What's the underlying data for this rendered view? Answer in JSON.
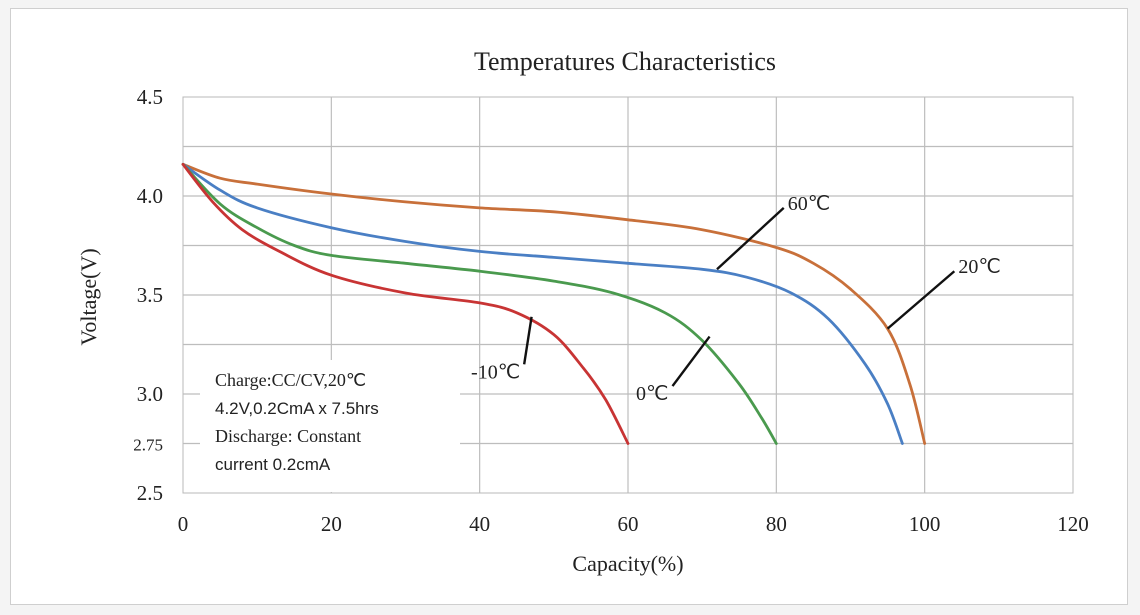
{
  "chart_data": {
    "type": "line",
    "title": "Temperatures Characteristics",
    "xlabel": "Capacity(%)",
    "ylabel": "Voltage(V)",
    "xlim": [
      0,
      120
    ],
    "ylim": [
      2.5,
      4.5
    ],
    "x_ticks": [
      0,
      20,
      40,
      60,
      80,
      100,
      120
    ],
    "x_tick_labels": [
      "0",
      "20",
      "40",
      "60",
      "80",
      "100",
      "120"
    ],
    "y_ticks": [
      2.5,
      2.75,
      3.0,
      3.5,
      4.0,
      4.5
    ],
    "y_tick_labels": [
      "2.5",
      "2.75",
      "3.0",
      "3.5",
      "4.0",
      "4.5"
    ],
    "grid": true,
    "series": [
      {
        "name": "60℃",
        "color": "#c8703a",
        "points": [
          [
            0,
            4.16
          ],
          [
            5,
            4.09
          ],
          [
            10,
            4.06
          ],
          [
            20,
            4.01
          ],
          [
            30,
            3.97
          ],
          [
            40,
            3.94
          ],
          [
            50,
            3.92
          ],
          [
            60,
            3.88
          ],
          [
            70,
            3.83
          ],
          [
            80,
            3.74
          ],
          [
            85,
            3.66
          ],
          [
            90,
            3.53
          ],
          [
            95,
            3.33
          ],
          [
            98,
            3.05
          ],
          [
            100,
            2.75
          ]
        ]
      },
      {
        "name": "20℃",
        "color": "#4a7fc4",
        "points": [
          [
            0,
            4.16
          ],
          [
            5,
            4.03
          ],
          [
            10,
            3.94
          ],
          [
            20,
            3.84
          ],
          [
            30,
            3.77
          ],
          [
            40,
            3.72
          ],
          [
            50,
            3.69
          ],
          [
            60,
            3.66
          ],
          [
            70,
            3.63
          ],
          [
            76,
            3.59
          ],
          [
            82,
            3.51
          ],
          [
            87,
            3.38
          ],
          [
            92,
            3.15
          ],
          [
            95,
            2.95
          ],
          [
            97,
            2.75
          ]
        ]
      },
      {
        "name": "0℃",
        "color": "#4a9a4e",
        "points": [
          [
            0,
            4.16
          ],
          [
            5,
            3.96
          ],
          [
            10,
            3.84
          ],
          [
            15,
            3.75
          ],
          [
            20,
            3.7
          ],
          [
            30,
            3.66
          ],
          [
            40,
            3.62
          ],
          [
            50,
            3.57
          ],
          [
            58,
            3.51
          ],
          [
            65,
            3.41
          ],
          [
            70,
            3.27
          ],
          [
            75,
            3.05
          ],
          [
            78,
            2.88
          ],
          [
            80,
            2.75
          ]
        ]
      },
      {
        "name": "-10℃",
        "color": "#c83434",
        "points": [
          [
            0,
            4.16
          ],
          [
            4,
            3.97
          ],
          [
            8,
            3.83
          ],
          [
            13,
            3.72
          ],
          [
            20,
            3.6
          ],
          [
            30,
            3.51
          ],
          [
            40,
            3.46
          ],
          [
            45,
            3.41
          ],
          [
            50,
            3.3
          ],
          [
            54,
            3.13
          ],
          [
            57,
            2.97
          ],
          [
            60,
            2.75
          ]
        ]
      }
    ],
    "annotations": [
      {
        "text": "60℃",
        "series": "60℃",
        "at": [
          72,
          3.63
        ],
        "label_at": [
          81,
          3.94
        ]
      },
      {
        "text": "20℃",
        "series": "20℃",
        "at": [
          95,
          3.33
        ],
        "label_at": [
          104,
          3.62
        ]
      },
      {
        "text": "0℃",
        "series": "0℃",
        "at": [
          71,
          3.29
        ],
        "label_at": [
          66,
          3.04
        ]
      },
      {
        "text": "-10℃",
        "series": "-10℃",
        "at": [
          47,
          3.39
        ],
        "label_at": [
          46,
          3.15
        ]
      }
    ],
    "note": {
      "lines": [
        "Charge:CC/CV,20℃",
        "4.2V,0.2CmA x 7.5hrs",
        "Discharge:  Constant",
        "current 0.2cmA"
      ]
    }
  }
}
